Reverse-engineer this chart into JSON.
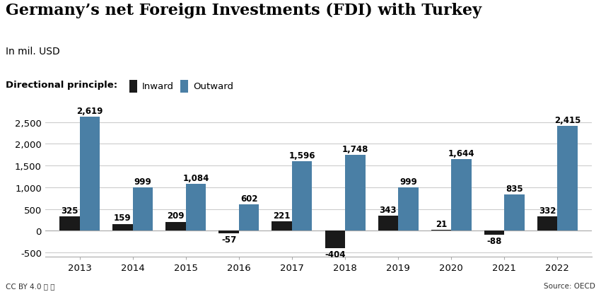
{
  "years": [
    "2013",
    "2014",
    "2015",
    "2016",
    "2017",
    "2018",
    "2019",
    "2020",
    "2021",
    "2022"
  ],
  "inward": [
    325,
    159,
    209,
    -57,
    221,
    -404,
    343,
    21,
    -88,
    332
  ],
  "outward": [
    2619,
    999,
    1084,
    602,
    1596,
    1748,
    999,
    1644,
    835,
    2415
  ],
  "inward_color": "#1a1a1a",
  "outward_color": "#4a7fa5",
  "title": "Germany’s net Foreign Investments (FDI) with Turkey",
  "subtitle": "In mil. USD",
  "legend_label_inward": "Inward",
  "legend_label_outward": "Outward",
  "legend_title": "Directional principle:",
  "ylim": [
    -600,
    2900
  ],
  "yticks": [
    -500,
    0,
    500,
    1000,
    1500,
    2000,
    2500
  ],
  "bar_width": 0.38,
  "background_color": "#ffffff",
  "grid_color": "#cccccc",
  "source_text": "Source: OECD",
  "license_text": "CC BY 4.0 Ⓒ ⓘ",
  "title_fontsize": 16,
  "subtitle_fontsize": 10,
  "label_fontsize": 8.5,
  "tick_fontsize": 9.5
}
